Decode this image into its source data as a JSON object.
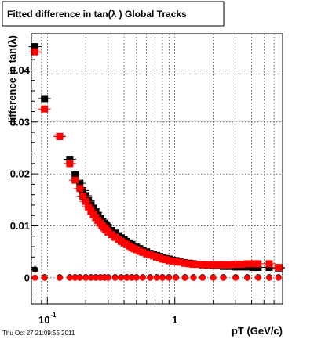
{
  "chart_data": {
    "type": "scatter",
    "title": "Fitted difference in tan(λ )  Global Tracks",
    "xlabel": "pT (GeV/c)",
    "ylabel": "difference in tan(λ)",
    "x_scale": "log",
    "xlim": [
      0.075,
      7.0
    ],
    "ylim": [
      -0.005,
      0.047
    ],
    "grid": true,
    "x_tick_labels": [
      {
        "value": 0.1,
        "base": "10",
        "exp": "-1"
      },
      {
        "value": 1,
        "base": "1",
        "exp": ""
      }
    ],
    "y_ticks": [
      0,
      0.01,
      0.02,
      0.03,
      0.04
    ],
    "y_tick_labels": [
      "0",
      "0.01",
      "0.02",
      "0.03",
      "0.04"
    ],
    "series": [
      {
        "color": "#000000",
        "x": [
          0.08,
          0.095,
          0.125,
          0.15,
          0.165,
          0.18,
          0.19,
          0.2,
          0.21,
          0.22,
          0.23,
          0.24,
          0.25,
          0.26,
          0.27,
          0.28,
          0.29,
          0.3,
          0.32,
          0.34,
          0.36,
          0.38,
          0.4,
          0.42,
          0.44,
          0.46,
          0.48,
          0.5,
          0.53,
          0.56,
          0.6,
          0.64,
          0.68,
          0.72,
          0.76,
          0.8,
          0.85,
          0.9,
          0.96,
          1.02,
          1.1,
          1.2,
          1.3,
          1.4,
          1.5,
          1.65,
          1.8,
          2.0,
          2.2,
          2.4,
          2.7,
          3.0,
          3.3,
          3.7,
          4.1,
          4.5,
          5.5,
          6.5
        ],
        "y": [
          0.0445,
          0.0345,
          0.0272,
          0.0228,
          0.0198,
          0.0182,
          0.0168,
          0.0158,
          0.0148,
          0.014,
          0.0133,
          0.0126,
          0.012,
          0.0114,
          0.0109,
          0.0105,
          0.0101,
          0.0097,
          0.0091,
          0.0086,
          0.0081,
          0.0077,
          0.0073,
          0.007,
          0.0067,
          0.0064,
          0.0061,
          0.0059,
          0.0056,
          0.0053,
          0.005,
          0.0047,
          0.0045,
          0.0043,
          0.0041,
          0.0039,
          0.0037,
          0.0036,
          0.0034,
          0.0033,
          0.0031,
          0.0029,
          0.0028,
          0.0027,
          0.0026,
          0.0025,
          0.0024,
          0.0023,
          0.0023,
          0.0022,
          0.0022,
          0.0021,
          0.0021,
          0.0021,
          0.002,
          0.002,
          0.002,
          0.0019
        ]
      },
      {
        "color": "#ff0000",
        "x": [
          0.08,
          0.095,
          0.125,
          0.15,
          0.165,
          0.18,
          0.19,
          0.2,
          0.21,
          0.22,
          0.23,
          0.24,
          0.25,
          0.26,
          0.27,
          0.28,
          0.29,
          0.3,
          0.32,
          0.34,
          0.36,
          0.38,
          0.4,
          0.42,
          0.44,
          0.46,
          0.48,
          0.5,
          0.53,
          0.56,
          0.6,
          0.64,
          0.68,
          0.72,
          0.76,
          0.8,
          0.85,
          0.9,
          0.96,
          1.02,
          1.1,
          1.2,
          1.3,
          1.4,
          1.5,
          1.65,
          1.8,
          2.0,
          2.2,
          2.4,
          2.7,
          3.0,
          3.3,
          3.7,
          4.1,
          4.5,
          5.5,
          6.5
        ],
        "y": [
          0.0435,
          0.0325,
          0.0272,
          0.022,
          0.0188,
          0.0172,
          0.0157,
          0.0147,
          0.0137,
          0.0129,
          0.0122,
          0.0116,
          0.011,
          0.0105,
          0.01,
          0.0096,
          0.0092,
          0.0088,
          0.0083,
          0.0078,
          0.0074,
          0.007,
          0.0067,
          0.0064,
          0.0061,
          0.0058,
          0.0056,
          0.0054,
          0.0051,
          0.0049,
          0.0046,
          0.0044,
          0.0042,
          0.004,
          0.0038,
          0.0036,
          0.0035,
          0.0033,
          0.0032,
          0.0031,
          0.003,
          0.0028,
          0.0027,
          0.0026,
          0.0026,
          0.0025,
          0.0025,
          0.0025,
          0.0025,
          0.0025,
          0.0025,
          0.0026,
          0.0026,
          0.0027,
          0.0027,
          0.0027,
          0.0027,
          0.002
        ]
      },
      {
        "color": "#000000",
        "x": [
          0.08,
          0.095,
          0.125,
          0.15,
          0.165,
          0.18,
          0.2,
          0.22,
          0.24,
          0.26,
          0.28,
          0.3,
          0.34,
          0.38,
          0.42,
          0.46,
          0.5,
          0.56,
          0.64,
          0.72,
          0.8,
          0.9,
          1.02,
          1.2,
          1.4,
          1.65,
          2.0,
          2.4,
          3.0,
          3.7,
          4.5,
          5.5,
          6.5
        ],
        "y": [
          0.0016,
          0.0001,
          0.0001,
          0.0001,
          0.0001,
          0.0001,
          0.0001,
          0.0001,
          0.0001,
          0.0001,
          0.0001,
          0.0001,
          0.0001,
          0.0001,
          0.0001,
          0.0001,
          0.0001,
          0.0001,
          0.0001,
          0.0001,
          0.0001,
          0.0001,
          0.0001,
          0.0001,
          0.0001,
          0.0001,
          0.0001,
          0.0001,
          0.0001,
          0.0001,
          0.0001,
          0.0001,
          0.0001
        ]
      },
      {
        "color": "#ff0000",
        "x": [
          0.08,
          0.095,
          0.125,
          0.15,
          0.165,
          0.18,
          0.2,
          0.22,
          0.24,
          0.26,
          0.28,
          0.3,
          0.34,
          0.38,
          0.42,
          0.46,
          0.5,
          0.56,
          0.64,
          0.72,
          0.8,
          0.9,
          1.02,
          1.2,
          1.4,
          1.65,
          2.0,
          2.4,
          3.0,
          3.7,
          4.5,
          5.5,
          6.5
        ],
        "y": [
          0.0,
          0.0,
          0.0,
          0.0,
          0.0,
          0.0,
          0.0,
          0.0,
          0.0,
          0.0,
          0.0,
          0.0,
          0.0,
          0.0,
          0.0,
          0.0,
          0.0,
          0.0,
          0.0,
          0.0,
          0.0,
          0.0,
          0.0,
          0.0,
          0.0,
          0.0,
          0.0,
          0.0,
          0.0,
          0.0,
          0.0,
          0.0,
          0.0
        ]
      }
    ]
  },
  "timestamp": "Thu Oct 27 21:09:55 2011"
}
